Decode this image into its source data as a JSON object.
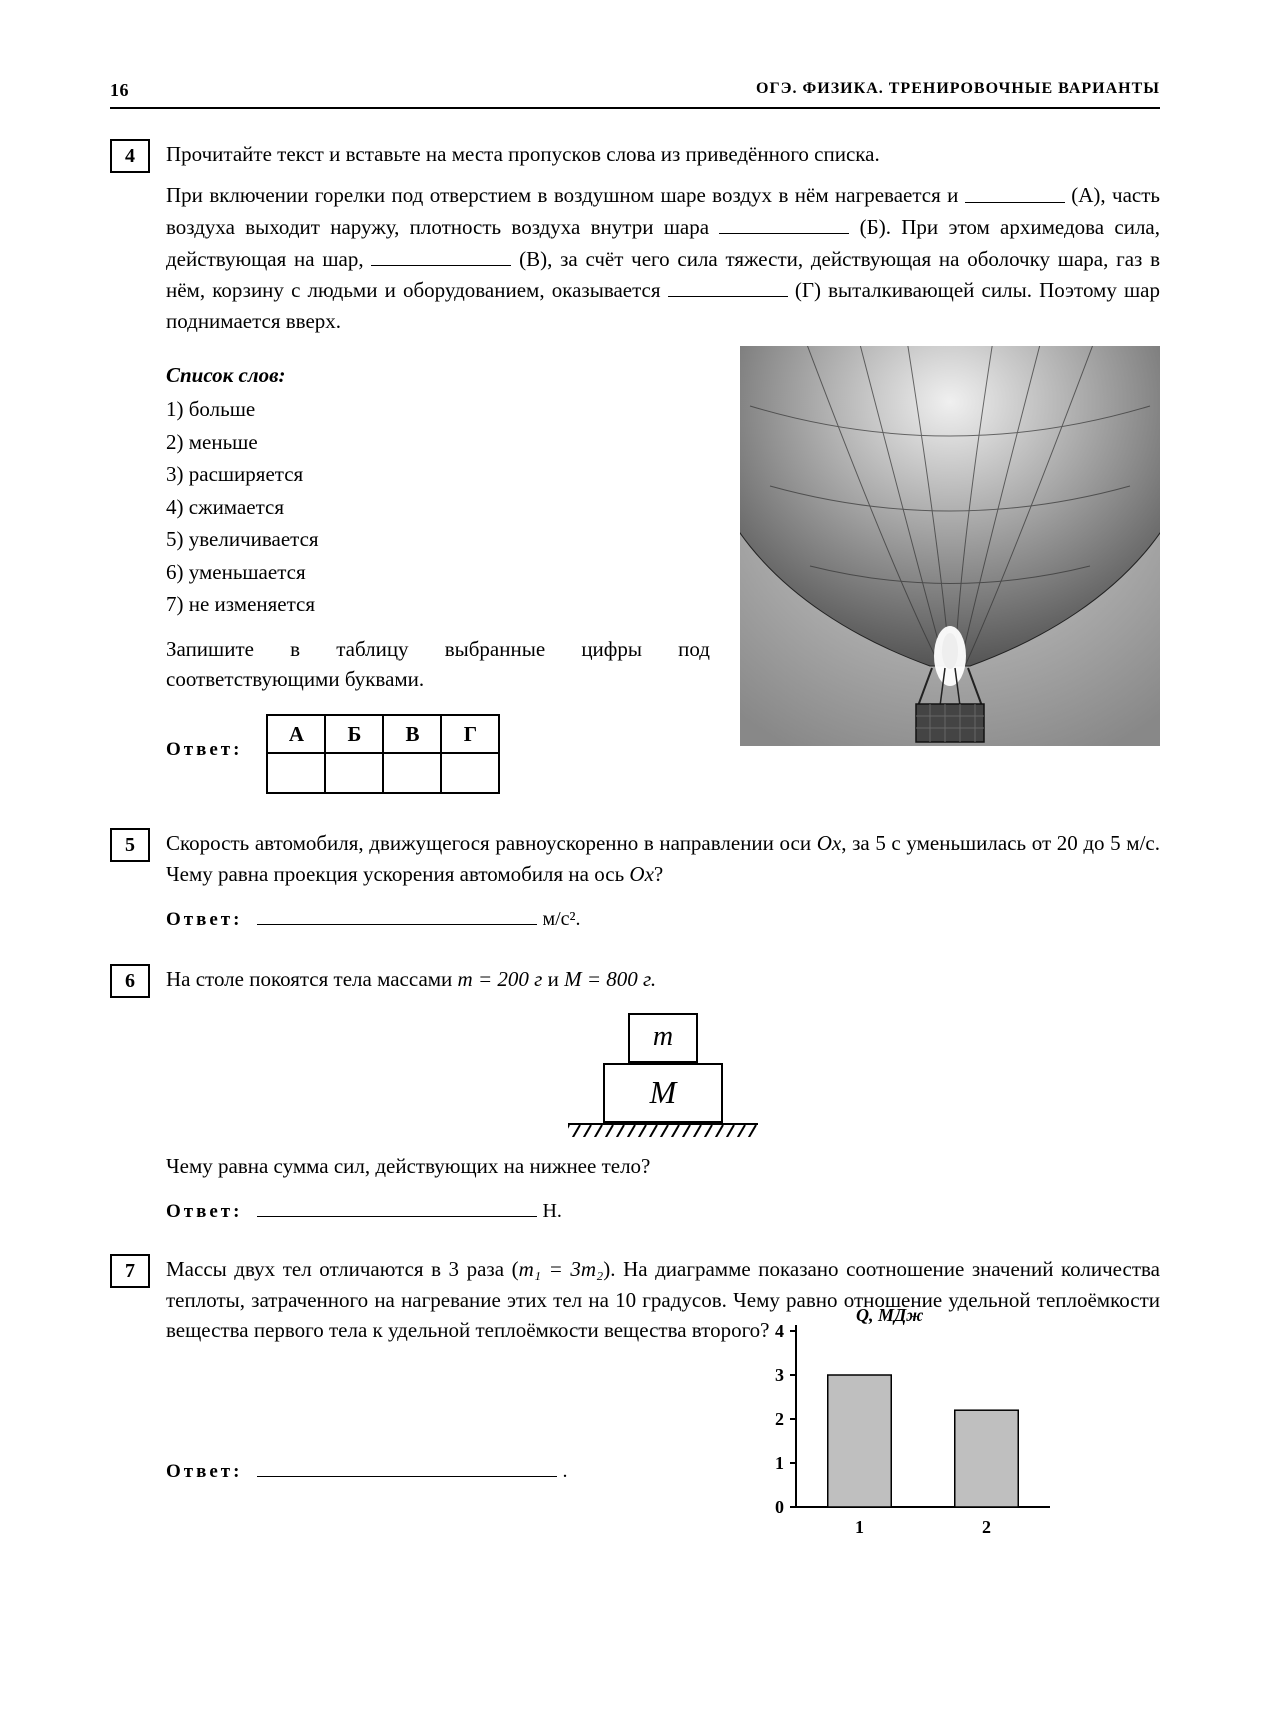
{
  "header": {
    "page": "16",
    "booktitle": "ОГЭ. ФИЗИКА. ТРЕНИРОВОЧНЫЕ ВАРИАНТЫ"
  },
  "task4": {
    "num": "4",
    "intro": "Прочитайте текст и вставьте на места пропусков слова из приведённого списка.",
    "text_parts": {
      "p1a": "При включении горелки под отверстием в воздушном шаре воздух в нём нагревается и ",
      "p1b": " (А), часть воздуха выходит наружу, плотность воздуха внутри шара ",
      "p1c": " (Б). При этом архимедова сила, действующая на шар, ",
      "p1d": " (В), за счёт чего сила тяжести, действующая на оболочку шара, газ в нём, корзину с людьми и оборудованием, оказывается ",
      "p1e": " (Г) выталкивающей силы. Поэтому шар поднимается вверх."
    },
    "list_title": "Список слов:",
    "words": [
      "1) больше",
      "2) меньше",
      "3) расширяется",
      "4) сжимается",
      "5) увеличивается",
      "6) уменьшается",
      "7) не изменяется"
    ],
    "table_instruction": "Запишите в таблицу выбранные цифры под соответствующими буквами.",
    "answer_label": "Ответ:",
    "table_headers": [
      "А",
      "Б",
      "В",
      "Г"
    ]
  },
  "task5": {
    "num": "5",
    "text_a": "Скорость автомобиля, движущегося равноускоренно в направлении оси ",
    "ox": "Ox",
    "text_b": ", за 5 с уменьшилась от 20 до 5 м/с. Чему равна проекция ускорения автомобиля на ось ",
    "text_c": "?",
    "answer_label": "Ответ:",
    "unit": "м/с²."
  },
  "task6": {
    "num": "6",
    "text_a": "На столе покоятся тела массами ",
    "m_eq": "m = 200 г",
    "and": " и ",
    "M_eq": "M = 800 г.",
    "m_label": "m",
    "M_label": "M",
    "question": "Чему равна сумма сил, действующих на нижнее тело?",
    "answer_label": "Ответ:",
    "unit": "Н."
  },
  "task7": {
    "num": "7",
    "text_a": "Массы двух тел отличаются в 3 раза (",
    "eq": "m₁ = 3m₂",
    "text_b": "). На диаграмме показано соотношение значений количества теплоты, затраченного на нагревание этих тел на 10 градусов. Чему равно отношение удельной теплоёмкости вещества первого тела к удельной теплоёмкости вещества второго?",
    "answer_label": "Ответ:",
    "chart": {
      "ylabel": "Q, МДж",
      "ymax": 4,
      "yticks": [
        0,
        1,
        2,
        3,
        4
      ],
      "xticks": [
        "1",
        "2"
      ],
      "bars": [
        {
          "x": 1,
          "value": 3,
          "color": "#bfbfbf",
          "border": "#000"
        },
        {
          "x": 2,
          "value": 2.2,
          "color": "#bfbfbf",
          "border": "#000"
        }
      ],
      "axis_color": "#000",
      "label_fontsize": 18,
      "tick_fontsize": 18,
      "bar_width": 0.5
    }
  }
}
